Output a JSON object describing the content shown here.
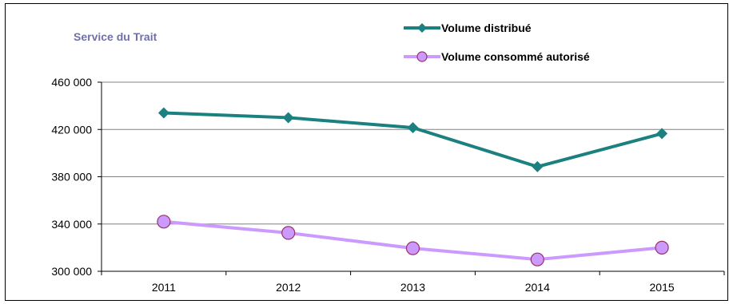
{
  "chart_data": {
    "type": "line",
    "title": "Service du Trait",
    "categories": [
      "2011",
      "2012",
      "2013",
      "2014",
      "2015"
    ],
    "ylim": [
      300000,
      460000
    ],
    "yticks": [
      300000,
      340000,
      380000,
      420000,
      460000
    ],
    "ytick_labels": [
      "300 000",
      "340 000",
      "380 000",
      "420 000",
      "460 000"
    ],
    "grid": true,
    "legend_position": "top",
    "series": [
      {
        "name": "Volume distribué",
        "values": [
          434000,
          430000,
          421500,
          388500,
          416500
        ],
        "color": "#1a8080",
        "marker": "diamond"
      },
      {
        "name": "Volume consommé autorisé",
        "values": [
          342000,
          332500,
          319500,
          310000,
          320000
        ],
        "color": "#cc99ff",
        "marker": "circle",
        "marker_edge": "#993366"
      }
    ]
  }
}
